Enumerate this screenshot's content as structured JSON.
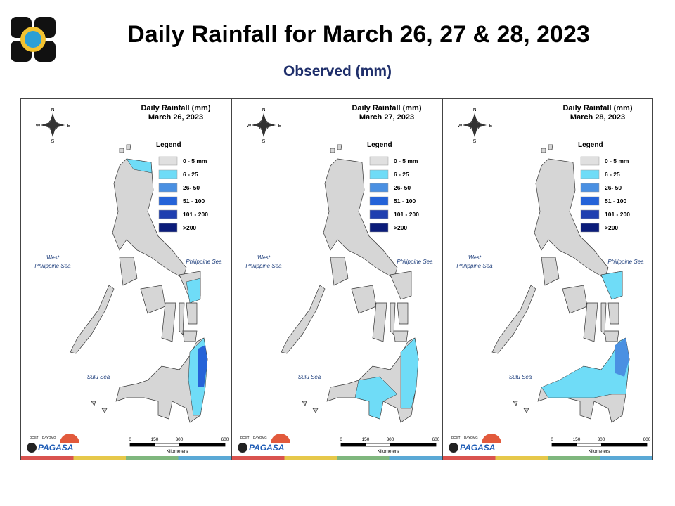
{
  "header": {
    "title": "Daily Rainfall for March 26, 27 & 28, 2023",
    "subtitle": "Observed (mm)"
  },
  "maps": [
    {
      "title": "Daily Rainfall (mm)",
      "date": "March 26, 2023"
    },
    {
      "title": "Daily Rainfall (mm)",
      "date": "March 27, 2023"
    },
    {
      "title": "Daily Rainfall (mm)",
      "date": "March 28, 2023"
    }
  ],
  "legend": {
    "title": "Legend",
    "items": [
      {
        "label": "0 - 5 mm",
        "color": "#e0e0e0"
      },
      {
        "label": "6 - 25",
        "color": "#6fdcf7"
      },
      {
        "label": "26- 50",
        "color": "#4a90e2"
      },
      {
        "label": "51 - 100",
        "color": "#2563d8"
      },
      {
        "label": "101 - 200",
        "color": "#1f3fb0"
      },
      {
        "label": ">200",
        "color": "#0b1c7a"
      }
    ]
  },
  "seas": {
    "west_line1": "West",
    "west_line2": "Philippine Sea",
    "east": "Philippine Sea",
    "south": "Sulu Sea"
  },
  "compass": {
    "n": "N",
    "e": "E",
    "s": "S",
    "w": "W"
  },
  "scale": {
    "ticks": [
      "0",
      "150",
      "300",
      "600"
    ],
    "unit": "Kilometers"
  },
  "logo": {
    "top": "DOST",
    "side": "DAYOMG",
    "brand": "PAGASA"
  }
}
